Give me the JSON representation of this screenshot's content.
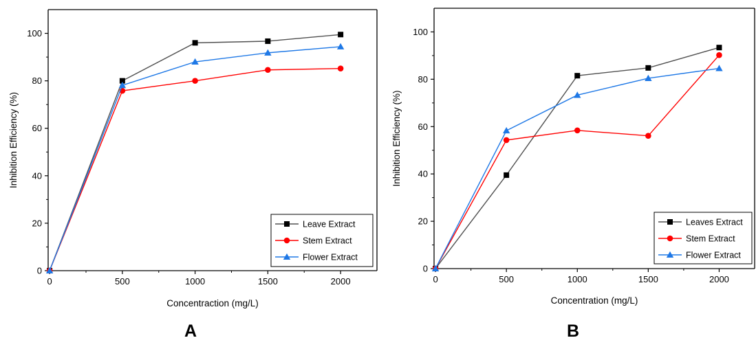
{
  "chart_data": [
    {
      "type": "line",
      "panel_label": "A",
      "xlabel": "Concentraction (mg/L)",
      "ylabel": "Inhibition Efficiency (%)",
      "x": [
        0,
        500,
        1000,
        1500,
        2000
      ],
      "x_ticks": [
        "0",
        "500",
        "1000",
        "1500",
        "2000"
      ],
      "y_ticks": [
        "0",
        "20",
        "40",
        "60",
        "80",
        "100"
      ],
      "xlim": [
        -10,
        2250
      ],
      "ylim": [
        0,
        110
      ],
      "grid": false,
      "legend_position": "bottom-right",
      "series": [
        {
          "name": "Leave Extract",
          "color": "#000000",
          "marker": "square",
          "line_color": "#505050",
          "values": [
            0,
            80,
            96,
            96.7,
            99.5
          ]
        },
        {
          "name": "Stem Extract",
          "color": "#ff0000",
          "marker": "circle",
          "line_color": "#ff0000",
          "values": [
            0,
            75.8,
            80,
            84.6,
            85.2
          ]
        },
        {
          "name": "Flower Extract",
          "color": "#1e78e6",
          "marker": "triangle",
          "line_color": "#1e78e6",
          "values": [
            0,
            78.1,
            88,
            91.8,
            94.4
          ]
        }
      ]
    },
    {
      "type": "line",
      "panel_label": "B",
      "xlabel": "Concentration (mg/L)",
      "ylabel": "Inhibition Efficiency (%)",
      "x": [
        0,
        500,
        1000,
        1500,
        2000
      ],
      "x_ticks": [
        "0",
        "500",
        "1000",
        "1500",
        "2000"
      ],
      "y_ticks": [
        "0",
        "20",
        "40",
        "60",
        "80",
        "100"
      ],
      "xlim": [
        -10,
        2250
      ],
      "ylim": [
        0,
        110
      ],
      "grid": false,
      "legend_position": "bottom-right",
      "series": [
        {
          "name": "Leaves Extract",
          "color": "#000000",
          "marker": "square",
          "line_color": "#505050",
          "values": [
            0,
            39.5,
            81.5,
            84.8,
            93.4
          ]
        },
        {
          "name": "Stem Extract",
          "color": "#ff0000",
          "marker": "circle",
          "line_color": "#ff0000",
          "values": [
            0,
            54.3,
            58.4,
            56.1,
            90.2
          ]
        },
        {
          "name": "Flower Extract",
          "color": "#1e78e6",
          "marker": "triangle",
          "line_color": "#1e78e6",
          "values": [
            0,
            58.3,
            73.3,
            80.4,
            84.6
          ]
        }
      ]
    }
  ]
}
